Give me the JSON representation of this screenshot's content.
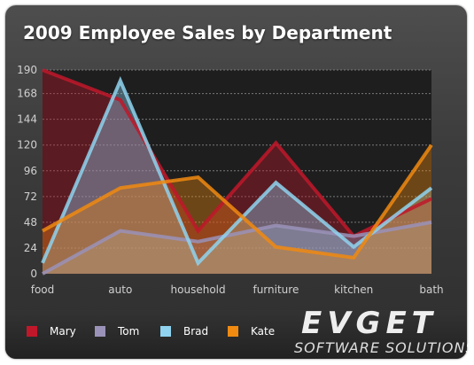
{
  "chart_data": {
    "type": "area",
    "title": "2009 Employee Sales by Department",
    "categories": [
      "food",
      "auto",
      "household",
      "furniture",
      "kitchen",
      "bath"
    ],
    "ylim": [
      0,
      190
    ],
    "yticks": [
      0,
      24,
      48,
      72,
      96,
      120,
      144,
      168,
      190
    ],
    "grid": true,
    "legend_position": "bottom-left",
    "series": [
      {
        "name": "Mary",
        "color": "#c0182a",
        "values": [
          190,
          162,
          40,
          122,
          35,
          70
        ]
      },
      {
        "name": "Tom",
        "color": "#9a92b8",
        "values": [
          0,
          40,
          30,
          45,
          35,
          48
        ]
      },
      {
        "name": "Brad",
        "color": "#8fd3ef",
        "values": [
          10,
          180,
          10,
          85,
          25,
          80
        ]
      },
      {
        "name": "Kate",
        "color": "#f08a10",
        "values": [
          40,
          80,
          90,
          25,
          15,
          120
        ]
      }
    ]
  },
  "watermark": {
    "brand": "EVGET",
    "tagline": "SOFTWARE SOLUTIONS"
  }
}
